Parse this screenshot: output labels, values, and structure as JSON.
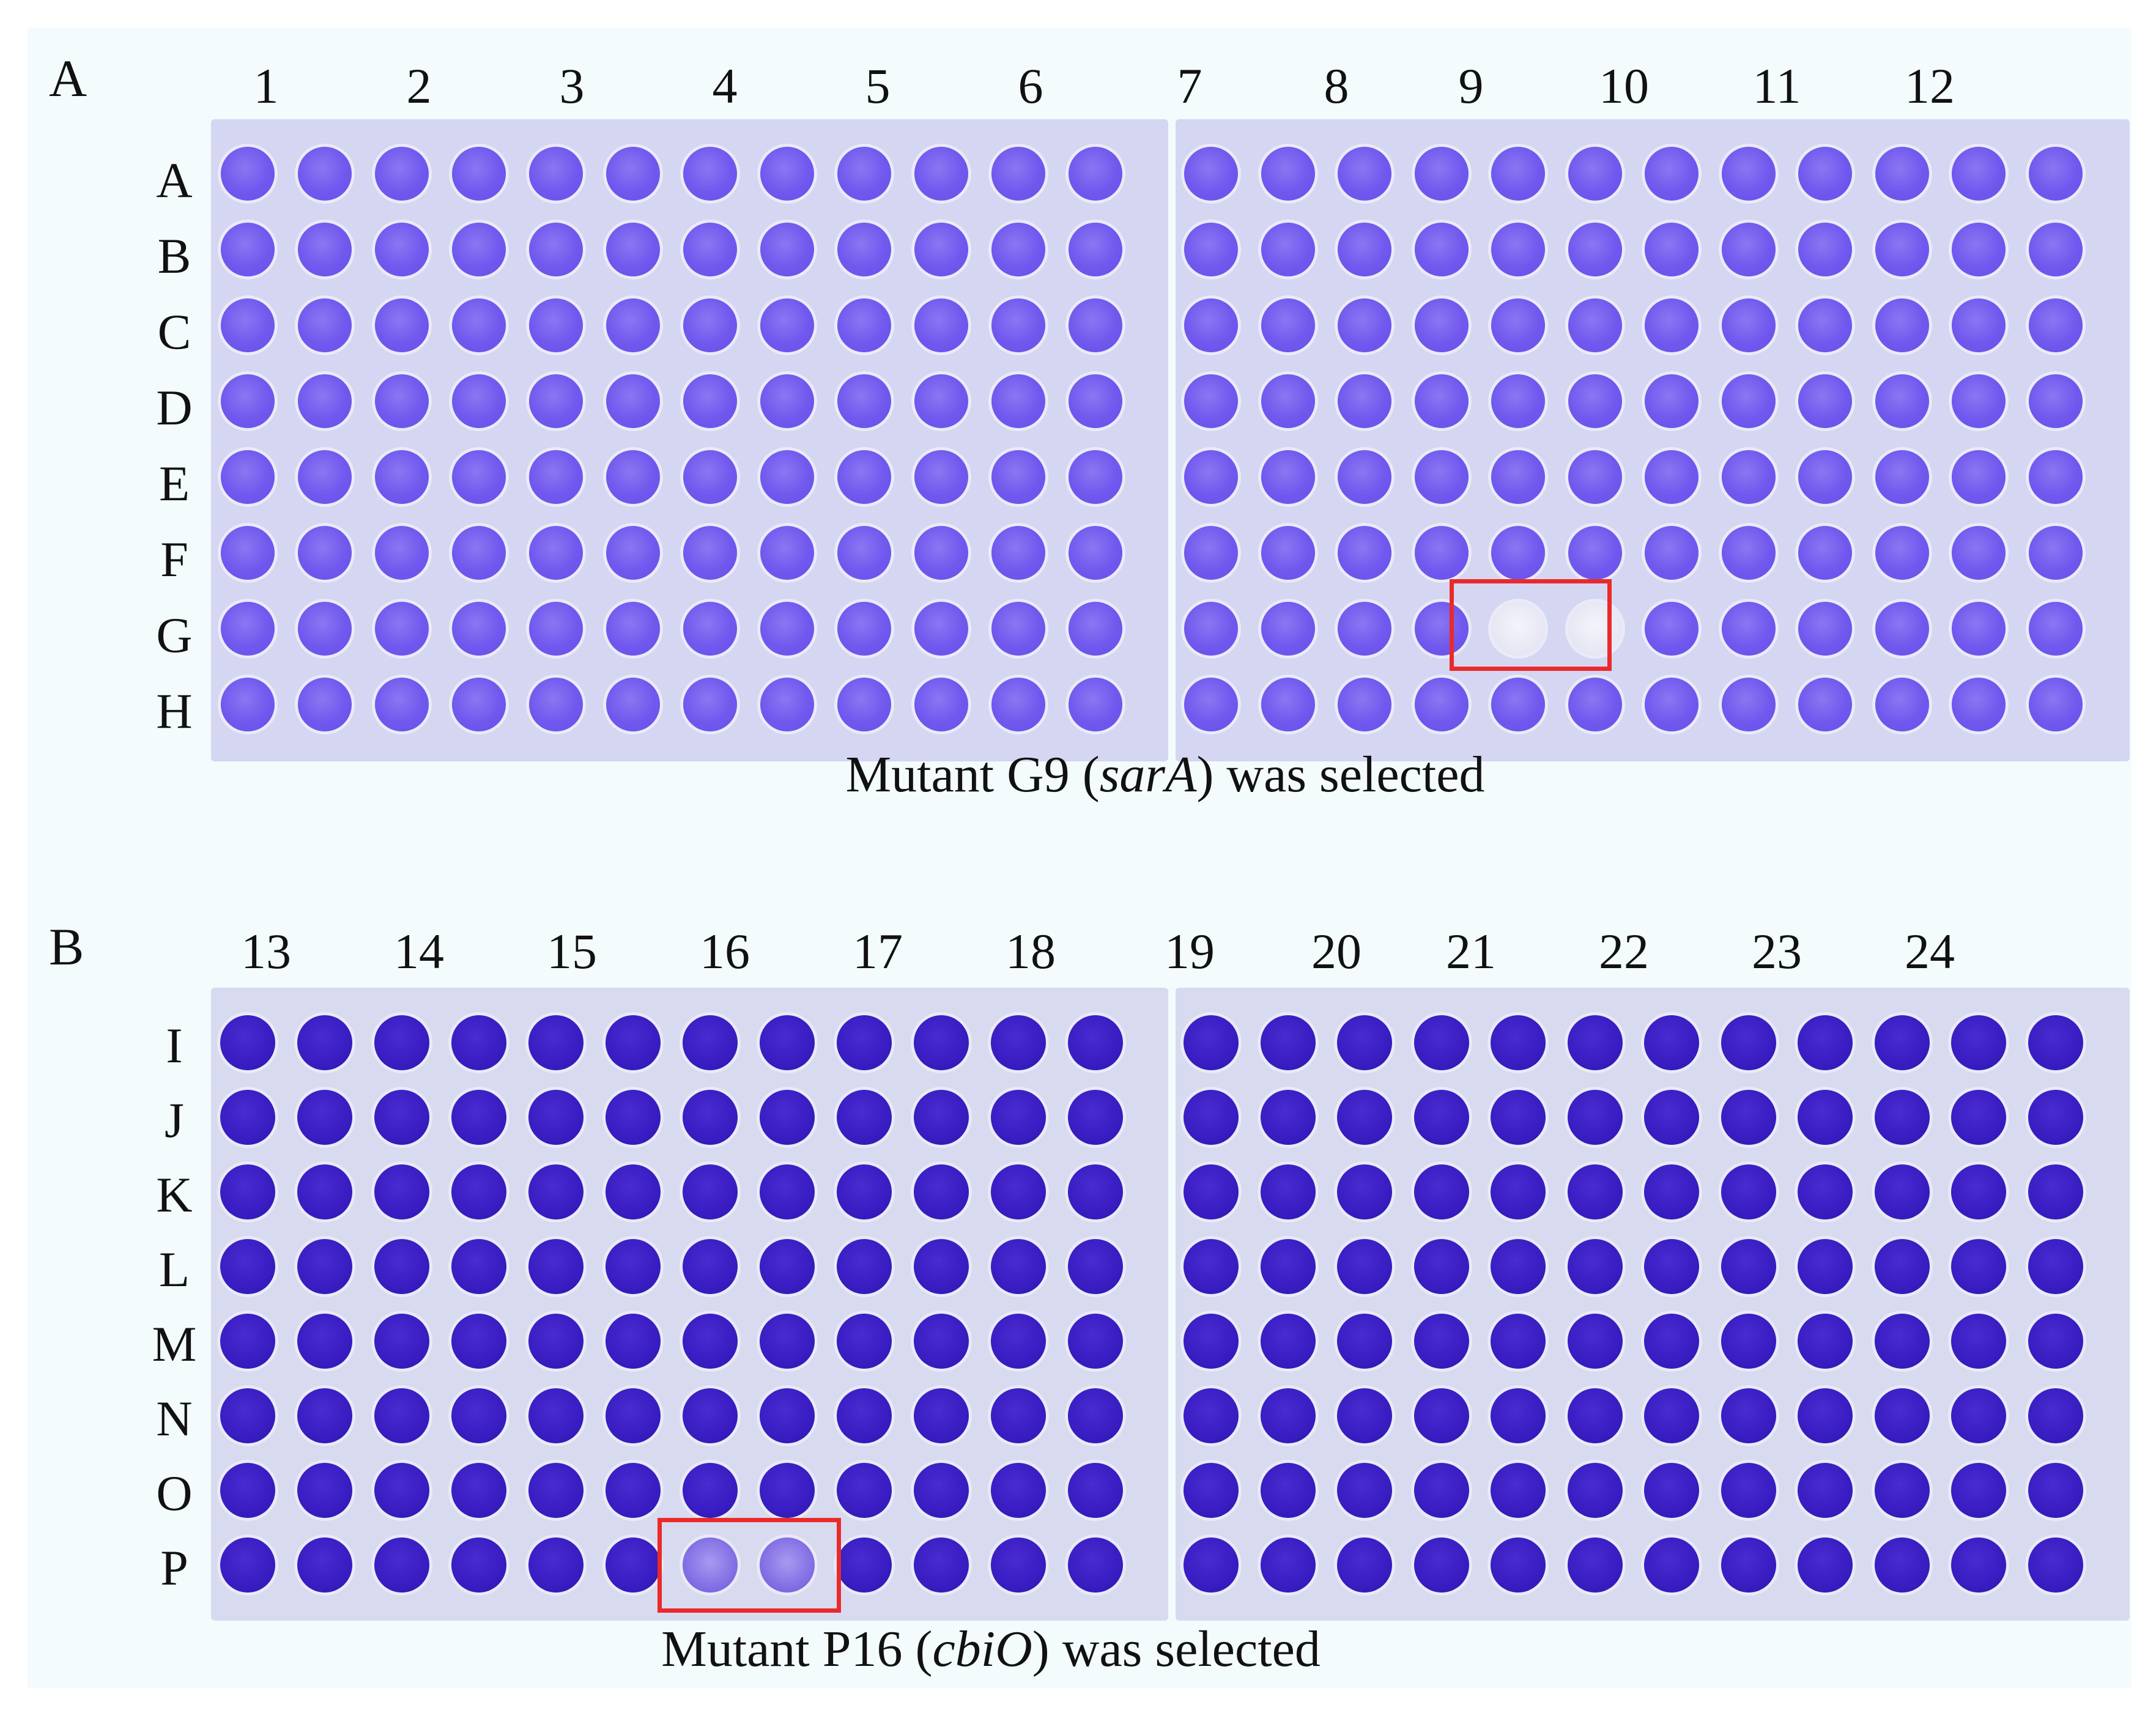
{
  "panels": [
    {
      "letter": "A",
      "columns": [
        "1",
        "2",
        "3",
        "4",
        "5",
        "6",
        "7",
        "8",
        "9",
        "10",
        "11",
        "12"
      ],
      "rows": [
        "A",
        "B",
        "C",
        "D",
        "E",
        "F",
        "G",
        "H"
      ],
      "selected_well": "G9",
      "caption_pre": "Mutant G9 (",
      "caption_gene": "sarA",
      "caption_post": ") was selected"
    },
    {
      "letter": "B",
      "columns": [
        "13",
        "14",
        "15",
        "16",
        "17",
        "18",
        "19",
        "20",
        "21",
        "22",
        "23",
        "24"
      ],
      "rows": [
        "I",
        "J",
        "K",
        "L",
        "M",
        "N",
        "O",
        "P"
      ],
      "selected_well": "P16",
      "caption_pre": "Mutant P16 (",
      "caption_gene": "cbiO",
      "caption_post": ") was selected"
    }
  ],
  "colors": {
    "plate_a_stain": "#7058ee",
    "plate_b_stain": "#3a1ec3",
    "selection_box": "#ea2a2a",
    "background": "#f4fbfd"
  }
}
